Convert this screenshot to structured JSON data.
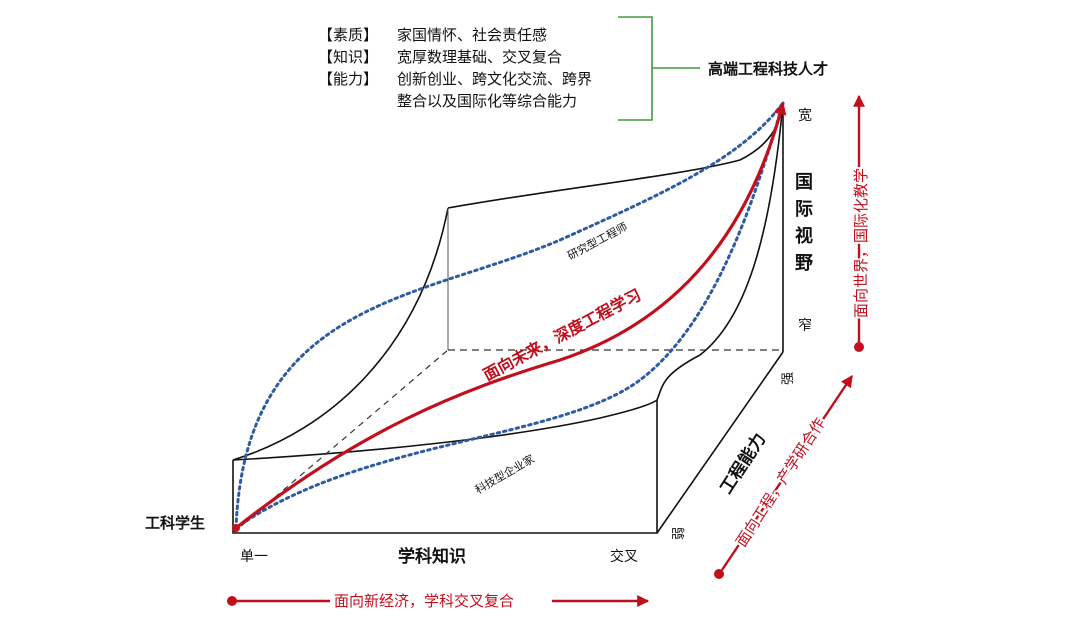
{
  "legend_box": {
    "rows": [
      {
        "tag": "【素质】",
        "text": "家国情怀、社会责任感"
      },
      {
        "tag": "【知识】",
        "text": "宽厚数理基础、交叉复合"
      },
      {
        "tag": "【能力】",
        "text": "创新创业、跨文化交流、跨界"
      },
      {
        "tag": "",
        "text": "整合以及国际化等综合能力"
      }
    ],
    "target": "高端工程科技人才"
  },
  "start_label": "工科学生",
  "axes": {
    "knowledge": {
      "title": "学科知识",
      "low": "单一",
      "high": "交叉"
    },
    "vision": {
      "title_chars": [
        "国",
        "际",
        "视",
        "野"
      ],
      "low": "窄",
      "high": "宽"
    },
    "ability": {
      "title": "工程能力",
      "low": "弱",
      "high": "强"
    }
  },
  "paths": {
    "main": "面向未来，深度工程学习",
    "research": "研究型工程师",
    "enterprise": "科技型企业家"
  },
  "arrows": {
    "bottom": "面向新经济，学科交叉复合",
    "diagonal": "面向工程，产学研合作",
    "right": "面向世界，国际化教学"
  },
  "colors": {
    "red": "#c0101e",
    "blue": "#2f5c9e",
    "green": "#3f9a3f",
    "line": "#111111"
  }
}
